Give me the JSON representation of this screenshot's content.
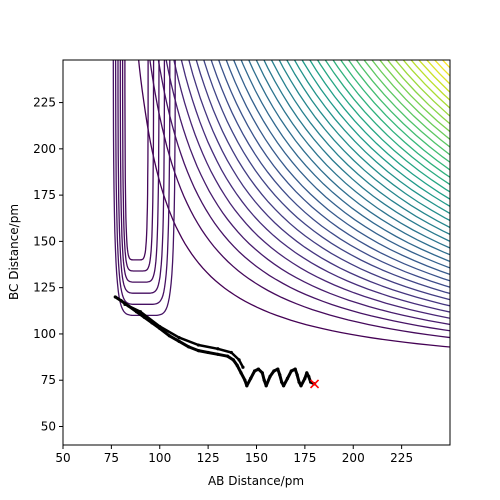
{
  "chart_data": {
    "type": "contour",
    "xlabel": "AB Distance/pm",
    "ylabel": "BC Distance/pm",
    "xlim": [
      50,
      250
    ],
    "ylim": [
      40,
      248
    ],
    "xticks": [
      50,
      75,
      100,
      125,
      150,
      175,
      200,
      225
    ],
    "yticks": [
      50,
      75,
      100,
      125,
      150,
      175,
      200,
      225
    ],
    "grid": false,
    "colormap": "viridis",
    "series": [
      {
        "kind": "trajectory",
        "color": "#000000",
        "points": [
          [
            77,
            120
          ],
          [
            80,
            118
          ],
          [
            84,
            115
          ],
          [
            88,
            112
          ],
          [
            92,
            109
          ],
          [
            96,
            106
          ],
          [
            100,
            103
          ],
          [
            105,
            99
          ],
          [
            110,
            96
          ],
          [
            115,
            93
          ],
          [
            120,
            91
          ],
          [
            125,
            90
          ],
          [
            130,
            89
          ],
          [
            135,
            88
          ],
          [
            138,
            86
          ],
          [
            140,
            83
          ],
          [
            142,
            79
          ],
          [
            144,
            75
          ],
          [
            145,
            72
          ],
          [
            147,
            76
          ],
          [
            149,
            80
          ],
          [
            151,
            81
          ],
          [
            153,
            79
          ],
          [
            154,
            75
          ],
          [
            155,
            72
          ],
          [
            157,
            77
          ],
          [
            159,
            80
          ],
          [
            161,
            81
          ],
          [
            162,
            78
          ],
          [
            163,
            74
          ],
          [
            164,
            72
          ],
          [
            166,
            76
          ],
          [
            168,
            80
          ],
          [
            170,
            81
          ],
          [
            171,
            78
          ],
          [
            172,
            74
          ],
          [
            173,
            72
          ],
          [
            175,
            76
          ],
          [
            176,
            79
          ],
          [
            177,
            77
          ],
          [
            178,
            74
          ],
          [
            180,
            73
          ]
        ]
      },
      {
        "kind": "ridge",
        "color": "#000000",
        "points": [
          [
            82,
            116
          ],
          [
            90,
            112
          ],
          [
            100,
            104
          ],
          [
            110,
            98
          ],
          [
            120,
            94
          ],
          [
            130,
            92
          ],
          [
            137,
            90
          ],
          [
            141,
            86
          ],
          [
            143,
            82
          ]
        ]
      }
    ],
    "end_marker": {
      "x": 180,
      "y": 73,
      "symbol": "x",
      "color": "#ff0000"
    }
  }
}
